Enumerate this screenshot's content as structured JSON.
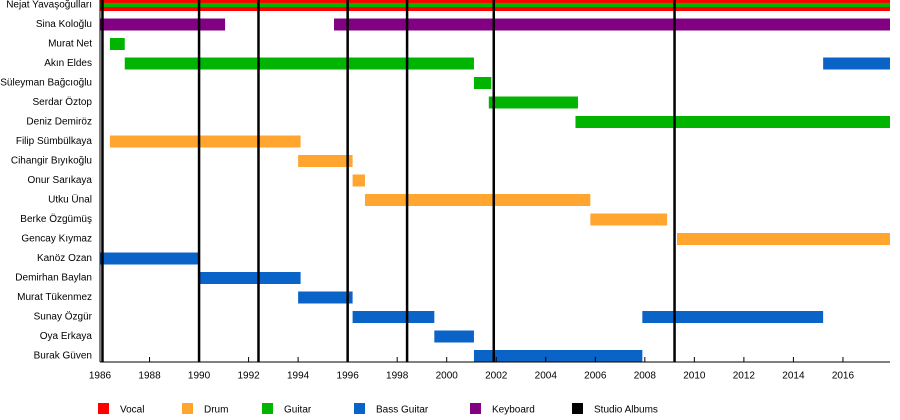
{
  "chart_data": {
    "type": "timeline",
    "categories": [
      "Nejat Yavaşoğulları",
      "Sina Koloğlu",
      "Murat Net",
      "Akın Eldes",
      "Süleyman Bağcıoğlu",
      "Serdar Öztop",
      "Deniz Demiröz",
      "Filip Sümbülkaya",
      "Cihangir Bıyıkoğlu",
      "Onur Sarıkaya",
      "Utku Ünal",
      "Berke Özgümüş",
      "Gencay Kıymaz",
      "Kanöz Ozan",
      "Demirhan Baylan",
      "Murat Tükenmez",
      "Sunay Özgür",
      "Oya Erkaya",
      "Burak Güven"
    ],
    "series": [
      {
        "name": "Vocal",
        "color": "#ff0000",
        "values": [
          [
            [
              1986,
              2017.9
            ]
          ],
          null,
          null,
          null,
          null,
          null,
          null,
          null,
          null,
          null,
          null,
          null,
          null,
          null,
          null,
          null,
          null,
          null,
          null
        ]
      },
      {
        "name": "Drum",
        "color": "#ffa530",
        "values": [
          null,
          null,
          null,
          null,
          null,
          null,
          null,
          [
            [
              1986.4,
              1994.1
            ]
          ],
          [
            [
              1994.0,
              1996.2
            ]
          ],
          [
            [
              1996.2,
              1996.7
            ]
          ],
          [
            [
              1996.7,
              2005.8
            ]
          ],
          [
            [
              2005.8,
              2008.9
            ]
          ],
          [
            [
              2009.3,
              2017.9
            ]
          ],
          null,
          null,
          null,
          null,
          null,
          null
        ]
      },
      {
        "name": "Guitar",
        "color": "#00b400",
        "values": [
          [
            [
              1986,
              2017.9
            ]
          ],
          null,
          [
            [
              1986.4,
              1987.0
            ]
          ],
          [
            [
              1987.0,
              2001.1
            ]
          ],
          [
            [
              2001.1,
              2001.8
            ]
          ],
          [
            [
              2001.7,
              2005.3
            ]
          ],
          [
            [
              2005.2,
              2017.9
            ]
          ],
          null,
          null,
          null,
          null,
          null,
          null,
          null,
          null,
          null,
          null,
          null,
          null
        ]
      },
      {
        "name": "Bass Guitar",
        "color": "#0a64c8",
        "values": [
          null,
          null,
          null,
          [
            [
              2015.2,
              2017.9
            ]
          ],
          null,
          null,
          null,
          null,
          null,
          null,
          null,
          null,
          null,
          [
            [
              1986,
              1990.0
            ]
          ],
          [
            [
              1990.0,
              1994.1
            ]
          ],
          [
            [
              1994.0,
              1996.2
            ]
          ],
          [
            [
              1996.2,
              1999.5
            ],
            [
              2007.9,
              2015.2
            ]
          ],
          [
            [
              1999.5,
              2001.1
            ]
          ],
          [
            [
              2001.1,
              2007.9
            ]
          ]
        ]
      },
      {
        "name": "Keyboard",
        "color": "#820082",
        "values": [
          null,
          [
            [
              1986,
              1991.05
            ],
            [
              1995.45,
              2017.9
            ]
          ],
          null,
          null,
          null,
          null,
          null,
          null,
          null,
          null,
          null,
          null,
          null,
          null,
          null,
          null,
          null,
          null,
          null
        ]
      }
    ],
    "albums": {
      "name": "Studio Albums",
      "color": "#000000",
      "values": [
        1986.1,
        1990.0,
        1992.4,
        1996.0,
        1998.4,
        2001.9,
        2009.2
      ]
    },
    "xlim": [
      1986,
      2017.9
    ],
    "xticks": [
      1986,
      1988,
      1990,
      1992,
      1994,
      1996,
      1998,
      2000,
      2002,
      2004,
      2006,
      2008,
      2010,
      2012,
      2014,
      2016
    ]
  }
}
